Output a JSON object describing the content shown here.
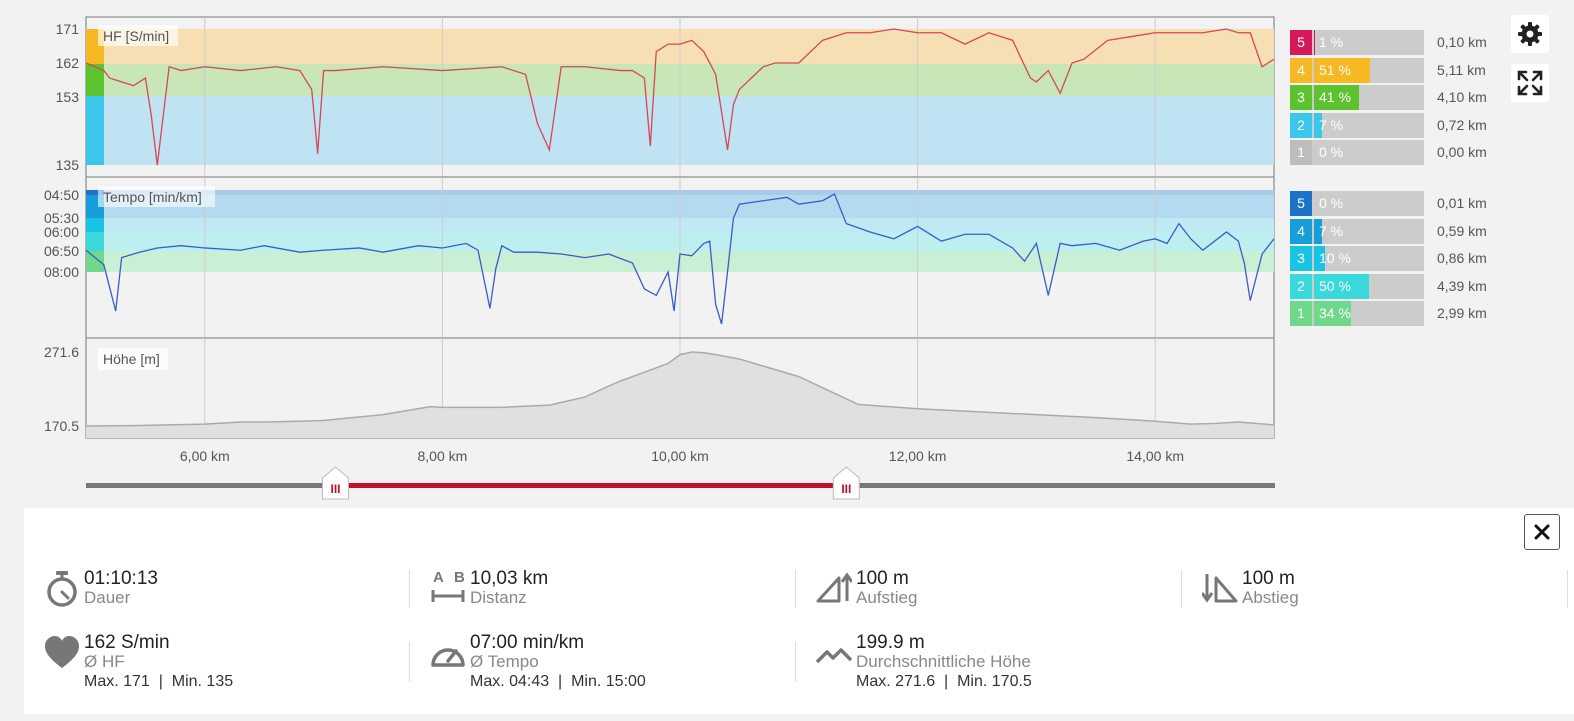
{
  "chart_data": [
    {
      "type": "line",
      "title": "",
      "series_label": "HF [S/min]",
      "ylabel": "HF [S/min]",
      "yticks": [
        171,
        162,
        153,
        135
      ],
      "ylim": [
        134,
        174
      ],
      "xlim": [
        5,
        15
      ],
      "x": [
        5.0,
        5.15,
        5.2,
        5.3,
        5.4,
        5.5,
        5.55,
        5.6,
        5.7,
        5.8,
        6.0,
        6.3,
        6.6,
        6.8,
        6.9,
        6.95,
        7.0,
        7.1,
        7.5,
        8.0,
        8.5,
        8.7,
        8.8,
        8.9,
        9.0,
        9.2,
        9.5,
        9.6,
        9.7,
        9.75,
        9.8,
        9.9,
        10.0,
        10.1,
        10.2,
        10.3,
        10.4,
        10.45,
        10.5,
        10.6,
        10.7,
        10.8,
        11.0,
        11.2,
        11.4,
        11.6,
        11.8,
        12.0,
        12.2,
        12.4,
        12.6,
        12.8,
        12.95,
        13.0,
        13.1,
        13.2,
        13.3,
        13.4,
        13.6,
        13.8,
        14.0,
        14.2,
        14.4,
        14.6,
        14.7,
        14.8,
        14.9,
        15.0
      ],
      "y": [
        162,
        160,
        158,
        157,
        156,
        158,
        148,
        135,
        161,
        160,
        161,
        160,
        161,
        160,
        155,
        138,
        160,
        160,
        161,
        160,
        161,
        159,
        146,
        139,
        161,
        161,
        160,
        160,
        158,
        140,
        165,
        167,
        167,
        168,
        165,
        159,
        139,
        151,
        155,
        158,
        161,
        162,
        162,
        168,
        170,
        170,
        171,
        170,
        170,
        167,
        170,
        168,
        158,
        157,
        160,
        154,
        162,
        163,
        168,
        169,
        170,
        170,
        170,
        171,
        170,
        170,
        161,
        163
      ]
    },
    {
      "type": "line",
      "title": "",
      "series_label": "Tempo [min/km]",
      "ylabel": "Tempo [min/km]",
      "yticks": [
        "04:50",
        "05:30",
        "06:00",
        "06:50",
        "08:00"
      ],
      "x": [
        5.0,
        5.15,
        5.25,
        5.3,
        5.45,
        5.6,
        5.8,
        6.0,
        6.3,
        6.5,
        6.8,
        7.0,
        7.3,
        7.5,
        7.8,
        8.0,
        8.2,
        8.3,
        8.4,
        8.45,
        8.5,
        8.6,
        8.8,
        9.0,
        9.2,
        9.4,
        9.6,
        9.7,
        9.8,
        9.9,
        9.95,
        10.0,
        10.1,
        10.2,
        10.25,
        10.3,
        10.35,
        10.4,
        10.45,
        10.5,
        10.7,
        10.9,
        11.0,
        11.2,
        11.3,
        11.4,
        11.6,
        11.8,
        12.0,
        12.2,
        12.4,
        12.6,
        12.8,
        12.9,
        13.0,
        13.1,
        13.2,
        13.3,
        13.5,
        13.7,
        13.9,
        14.0,
        14.1,
        14.2,
        14.3,
        14.4,
        14.6,
        14.7,
        14.75,
        14.8,
        14.9,
        15.0
      ],
      "y_minutes_per_km": [
        6.8,
        7.6,
        11.0,
        7.2,
        6.9,
        6.7,
        6.6,
        6.7,
        6.8,
        6.6,
        6.9,
        6.8,
        6.7,
        6.9,
        6.6,
        6.7,
        6.5,
        6.8,
        10.8,
        7.8,
        6.6,
        6.9,
        6.9,
        7.0,
        7.2,
        7.0,
        7.5,
        9.3,
        9.8,
        8.0,
        11.0,
        7.0,
        7.1,
        6.5,
        6.4,
        10.5,
        12.0,
        8.0,
        5.5,
        5.1,
        5.0,
        4.9,
        5.1,
        5.0,
        4.8,
        5.7,
        6.0,
        6.3,
        5.8,
        6.4,
        6.1,
        6.1,
        6.7,
        7.4,
        6.5,
        9.8,
        6.5,
        6.6,
        6.5,
        6.8,
        6.4,
        6.3,
        6.5,
        5.7,
        6.3,
        6.8,
        6.0,
        6.4,
        7.5,
        10.2,
        7.0,
        6.3
      ]
    },
    {
      "type": "area",
      "title": "",
      "series_label": "Höhe [m]",
      "ylabel": "Höhe [m]",
      "yticks": [
        271.6,
        170.5
      ],
      "ylim": [
        168,
        274
      ],
      "x": [
        5.0,
        5.4,
        5.7,
        6.0,
        6.2,
        6.3,
        6.5,
        6.8,
        7.0,
        7.5,
        7.9,
        8.0,
        8.5,
        8.9,
        9.2,
        9.4,
        9.5,
        9.7,
        9.9,
        10.0,
        10.1,
        10.2,
        10.3,
        10.5,
        11.0,
        11.5,
        12.0,
        12.5,
        13.0,
        13.5,
        14.0,
        14.3,
        14.5,
        14.7,
        15.0
      ],
      "y": [
        170.5,
        171,
        172,
        173,
        175,
        176,
        176,
        177,
        178,
        186,
        197,
        196,
        196,
        199,
        210,
        225,
        232,
        244,
        256,
        268,
        271.6,
        270.5,
        268,
        262,
        238,
        200,
        194,
        190,
        186,
        182,
        177,
        173,
        174,
        176,
        172
      ]
    }
  ],
  "x_axis": {
    "labels": [
      "6,00 km",
      "8,00 km",
      "10,00 km",
      "12,00 km",
      "14,00 km"
    ],
    "values": [
      6,
      8,
      10,
      12,
      14
    ]
  },
  "range_slider": {
    "start_km": 7.1,
    "end_km": 11.4,
    "handle_glyph": "III"
  },
  "hr_zones": [
    {
      "zone": "5",
      "pct": "1 %",
      "fraction": 0.01,
      "km": "0,10 km",
      "color": "#d6195b"
    },
    {
      "zone": "4",
      "pct": "51 %",
      "fraction": 0.51,
      "km": "5,11 km",
      "color": "#f6b924"
    },
    {
      "zone": "3",
      "pct": "41 %",
      "fraction": 0.41,
      "km": "4,10 km",
      "color": "#5cc22f"
    },
    {
      "zone": "2",
      "pct": "7 %",
      "fraction": 0.07,
      "km": "0,72 km",
      "color": "#3bc6ec"
    },
    {
      "zone": "1",
      "pct": "0 %",
      "fraction": 0.0,
      "km": "0,00 km",
      "color": "#bdbdbd"
    }
  ],
  "pace_zones": [
    {
      "zone": "5",
      "pct": "0 %",
      "fraction": 0.0,
      "km": "0,01 km",
      "color": "#1b74c9"
    },
    {
      "zone": "4",
      "pct": "7 %",
      "fraction": 0.07,
      "km": "0,59 km",
      "color": "#169ed8"
    },
    {
      "zone": "3",
      "pct": "10 %",
      "fraction": 0.1,
      "km": "0,86 km",
      "color": "#19c3e3"
    },
    {
      "zone": "2",
      "pct": "50 %",
      "fraction": 0.5,
      "km": "4,39 km",
      "color": "#39d8db"
    },
    {
      "zone": "1",
      "pct": "34 %",
      "fraction": 0.34,
      "km": "2,99 km",
      "color": "#6ed98a"
    }
  ],
  "colors": {
    "hr_line": "#d64658",
    "pace_line": "#3a5cc9",
    "elevation_fill": "#e0e0e0",
    "slider_active": "#c0102a",
    "slider_track": "#777777"
  },
  "icons": {
    "settings": "gear-icon",
    "fullscreen": "expand-icon",
    "close": "close-icon"
  },
  "stats": {
    "duration": {
      "value": "01:10:13",
      "label": "Dauer"
    },
    "distance": {
      "value": "10,03 km",
      "label": "Distanz",
      "icon_a": "A",
      "icon_b": "B"
    },
    "ascent": {
      "value": "100 m",
      "label": "Aufstieg"
    },
    "descent": {
      "value": "100 m",
      "label": "Abstieg"
    },
    "hr": {
      "value": "162 S/min",
      "label": "Ø HF",
      "extra": "Max. 171  |  Min. 135"
    },
    "pace": {
      "value": "07:00 min/km",
      "label": "Ø Tempo",
      "extra": "Max. 04:43  |  Min. 15:00"
    },
    "altitude": {
      "value": "199.9 m",
      "label": "Durchschnittliche Höhe",
      "extra": "Max. 271.6  |  Min. 170.5"
    }
  }
}
